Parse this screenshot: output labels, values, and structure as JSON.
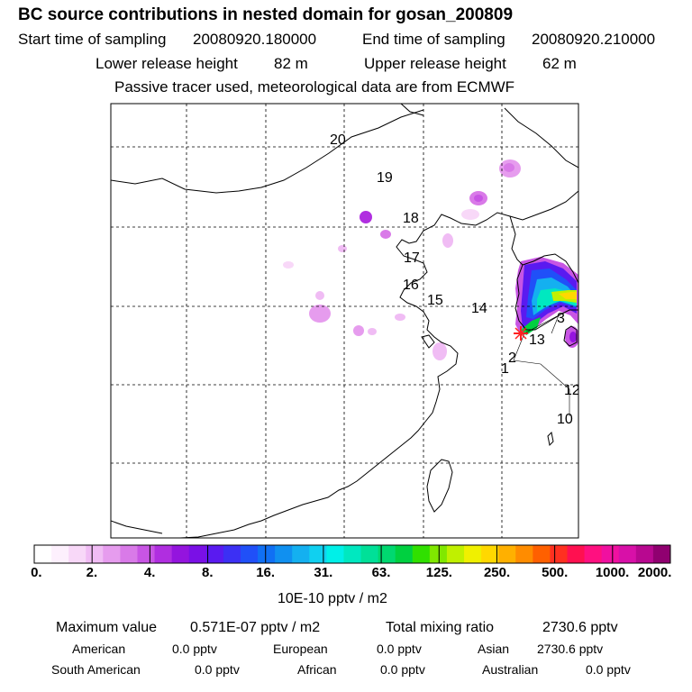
{
  "title": "BC  source contributions in nested domain for gosan_200809",
  "header": {
    "start_label": "Start time of sampling",
    "start_value": "20080920.180000",
    "end_label": "End time of sampling",
    "end_value": "20080920.210000",
    "lower_label": "Lower release height",
    "lower_value": "82 m",
    "upper_label": "Upper release height",
    "upper_value": "62 m",
    "note": "Passive tracer used, meteorological data are from ECMWF"
  },
  "map": {
    "trajectory_labels": [
      "20",
      "19",
      "18",
      "17",
      "16",
      "15",
      "14",
      "13",
      "12",
      "10",
      "3",
      "2",
      "1"
    ],
    "colors": {
      "coast": "#000000",
      "grid": "#000000"
    }
  },
  "colorbar": {
    "ticks": [
      "0.",
      "2.",
      "4.",
      "8.",
      "16.",
      "31.",
      "63.",
      "125.",
      "250.",
      "500.",
      "1000.",
      "2000."
    ],
    "unit": "10E-10 pptv / m2",
    "colors": [
      "#ffffff",
      "#fdf0fd",
      "#f8d8f8",
      "#f0bcf4",
      "#e69cee",
      "#d97ae8",
      "#c855e4",
      "#b02ee0",
      "#9414de",
      "#7a10e6",
      "#5a1af0",
      "#3c30f4",
      "#2050f8",
      "#1070f4",
      "#1090f0",
      "#14b0f0",
      "#10d0f0",
      "#00f0e8",
      "#00e8c0",
      "#00e098",
      "#00d870",
      "#00d040",
      "#30e000",
      "#80e800",
      "#c0f000",
      "#f0f000",
      "#ffd800",
      "#ffb000",
      "#ff8c00",
      "#ff6000",
      "#ff3020",
      "#ff1050",
      "#ff1080",
      "#f010a0",
      "#d810a8",
      "#b80890",
      "#900070"
    ]
  },
  "footer": {
    "max_label": "Maximum value",
    "max_value": "0.571E-07 pptv / m2",
    "total_label": "Total mixing ratio",
    "total_value": "2730.6 pptv",
    "american_label": "American",
    "american_value": "0.0 pptv",
    "european_label": "European",
    "european_value": "0.0 pptv",
    "asian_label": "Asian",
    "asian_value": "2730.6 pptv",
    "south_american_label": "South American",
    "south_american_value": "0.0 pptv",
    "african_label": "African",
    "african_value": "0.0 pptv",
    "australian_label": "Australian",
    "australian_value": "0.0 pptv"
  }
}
